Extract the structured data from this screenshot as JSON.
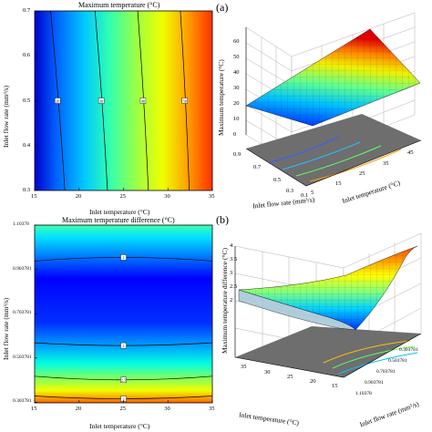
{
  "panel_tags": {
    "a": "(a)",
    "b": "(b)"
  },
  "colors": {
    "jet": [
      "#00008f",
      "#0000ff",
      "#0080ff",
      "#00ffff",
      "#80ff80",
      "#ffff00",
      "#ff8000",
      "#ff0000",
      "#800000"
    ],
    "floor": "#707070",
    "grid": "#b0b0b0"
  },
  "chart_data": [
    {
      "type": "heatmap",
      "title": "Maximum temperature (°C)",
      "xlabel": "Inlet temperature (°C)",
      "ylabel": "Inlet flow rate (mm³/s)",
      "xlim": [
        15,
        35
      ],
      "ylim": [
        0.3,
        0.7
      ],
      "x_ticks": [
        "15",
        "20",
        "25",
        "30",
        "35"
      ],
      "y_ticks": [
        "0.3",
        "0.4",
        "0.5",
        "0.6",
        "0.7"
      ],
      "contours": [
        {
          "label": "20",
          "x_at_bottom": 18.4,
          "x_at_top": 16.8,
          "label_y": 0.5
        },
        {
          "label": "30",
          "x_at_bottom": 23.2,
          "x_at_top": 21.8,
          "label_y": 0.5
        },
        {
          "label": "40",
          "x_at_bottom": 27.8,
          "x_at_top": 26.6,
          "label_y": 0.5
        },
        {
          "label": "50",
          "x_at_bottom": 32.4,
          "x_at_top": 31.4,
          "label_y": 0.5
        }
      ],
      "contour_label_texts": [
        "20",
        "30",
        "40",
        "50"
      ]
    },
    {
      "type": "surface",
      "zlabel": "Maximum temperature (°C)",
      "xlabel": "Inlet flow rate (mm³/s)",
      "ylabel": "Inlet temperature (°C)",
      "z_ticks": [
        "0",
        "10",
        "20",
        "30",
        "40",
        "50",
        "60"
      ],
      "x_ticks": [
        "0.9",
        "0.7",
        "0.5",
        "0.3",
        "0.1"
      ],
      "y_ticks": [
        "5",
        "15",
        "25",
        "35",
        "45"
      ],
      "zlim": [
        0,
        60
      ],
      "surface_z_range": [
        7,
        52
      ]
    },
    {
      "type": "heatmap",
      "title": "Maximum temperature difference (°C)",
      "xlabel": "Inlet temperature (°C)",
      "ylabel": "Inlet flow rate (mm³/s)",
      "xlim": [
        15,
        35
      ],
      "ylim": [
        0.301378,
        1.10378
      ],
      "x_ticks": [
        "15",
        "20",
        "25",
        "30",
        "35"
      ],
      "y_ticks": [
        "0.303781",
        "0.503781",
        "0.703781",
        "0.903781",
        "1.10378"
      ],
      "contours": [
        {
          "label": "2",
          "y_center": 0.958
        },
        {
          "label": "2",
          "y_center": 0.56
        },
        {
          "label": "2.5",
          "y_center": 0.405
        },
        {
          "label": "3",
          "y_center": 0.32
        }
      ],
      "contour_label_texts": [
        "2",
        "2",
        "2.5",
        "3"
      ]
    },
    {
      "type": "surface",
      "zlabel": "Maximum temperature difference (°C)",
      "xlabel": "Inlet temperature (°C)",
      "ylabel": "Inlet flow rate (mm³/s)",
      "z_ticks": [
        "2",
        "2.5",
        "3",
        "3.5",
        "4"
      ],
      "x_ticks": [
        "35",
        "30",
        "25",
        "20",
        "15"
      ],
      "y_ticks": [
        "0.303781",
        "0.503781",
        "0.703781",
        "0.903781",
        "1.10378"
      ],
      "zlim": [
        2,
        4
      ],
      "surface_z_range": [
        2.0,
        3.6
      ]
    }
  ]
}
